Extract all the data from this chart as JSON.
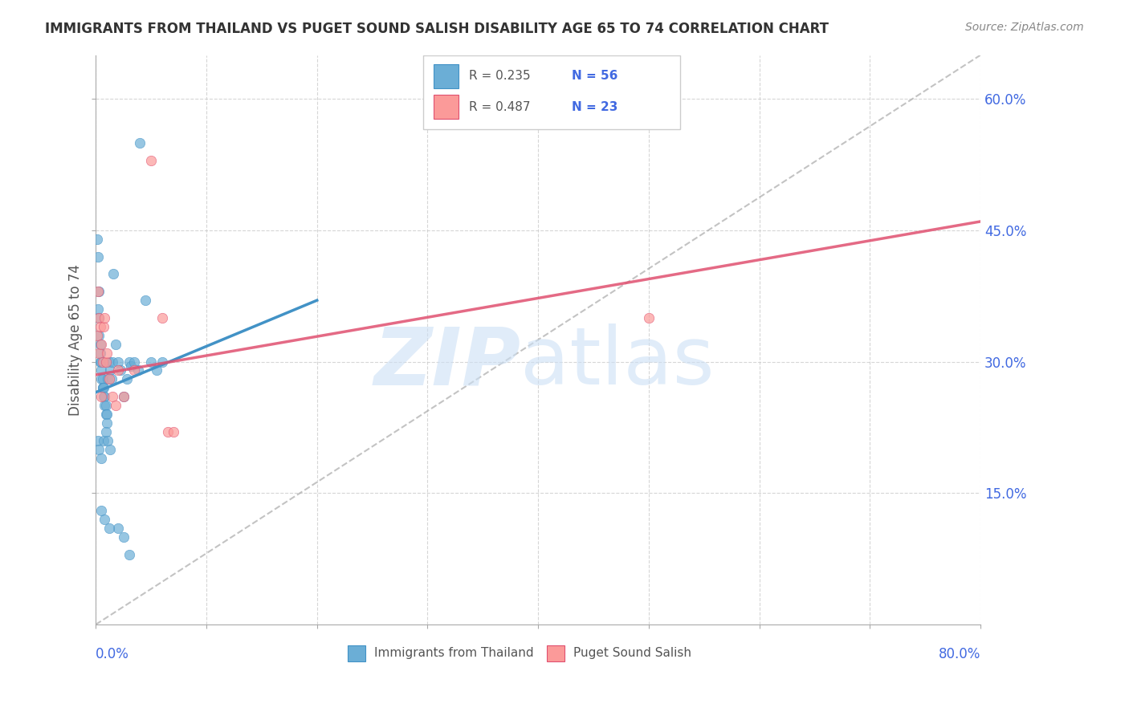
{
  "title": "IMMIGRANTS FROM THAILAND VS PUGET SOUND SALISH DISABILITY AGE 65 TO 74 CORRELATION CHART",
  "source": "Source: ZipAtlas.com",
  "ylabel": "Disability Age 65 to 74",
  "xlim": [
    0.0,
    0.8
  ],
  "ylim": [
    0.0,
    0.65
  ],
  "ytick_labels": [
    "15.0%",
    "30.0%",
    "45.0%",
    "60.0%"
  ],
  "ytick_values": [
    0.15,
    0.3,
    0.45,
    0.6
  ],
  "color_blue": "#6baed6",
  "color_blue_dark": "#4292c6",
  "color_pink": "#fb9a99",
  "color_pink_dark": "#e05070",
  "color_text_blue": "#4169E1",
  "title_color": "#333333",
  "grid_color": "#cccccc",
  "blue_scatter_x": [
    0.001,
    0.002,
    0.002,
    0.003,
    0.003,
    0.003,
    0.004,
    0.004,
    0.004,
    0.005,
    0.005,
    0.005,
    0.006,
    0.006,
    0.006,
    0.007,
    0.007,
    0.008,
    0.008,
    0.009,
    0.009,
    0.01,
    0.01,
    0.011,
    0.012,
    0.013,
    0.014,
    0.015,
    0.016,
    0.018,
    0.02,
    0.022,
    0.025,
    0.028,
    0.03,
    0.032,
    0.035,
    0.038,
    0.04,
    0.045,
    0.05,
    0.055,
    0.06,
    0.002,
    0.003,
    0.005,
    0.007,
    0.009,
    0.011,
    0.013,
    0.02,
    0.025,
    0.03,
    0.005,
    0.008,
    0.012
  ],
  "blue_scatter_y": [
    0.44,
    0.42,
    0.36,
    0.38,
    0.35,
    0.33,
    0.32,
    0.31,
    0.3,
    0.3,
    0.29,
    0.28,
    0.28,
    0.27,
    0.27,
    0.27,
    0.26,
    0.26,
    0.25,
    0.25,
    0.24,
    0.24,
    0.23,
    0.28,
    0.3,
    0.29,
    0.28,
    0.3,
    0.4,
    0.32,
    0.3,
    0.29,
    0.26,
    0.28,
    0.3,
    0.295,
    0.3,
    0.29,
    0.55,
    0.37,
    0.3,
    0.29,
    0.3,
    0.21,
    0.2,
    0.19,
    0.21,
    0.22,
    0.21,
    0.2,
    0.11,
    0.1,
    0.08,
    0.13,
    0.12,
    0.11
  ],
  "pink_scatter_x": [
    0.001,
    0.002,
    0.003,
    0.003,
    0.004,
    0.005,
    0.005,
    0.006,
    0.007,
    0.008,
    0.009,
    0.01,
    0.012,
    0.015,
    0.018,
    0.02,
    0.025,
    0.035,
    0.05,
    0.06,
    0.065,
    0.07,
    0.5
  ],
  "pink_scatter_y": [
    0.33,
    0.38,
    0.35,
    0.31,
    0.34,
    0.32,
    0.26,
    0.3,
    0.34,
    0.35,
    0.3,
    0.31,
    0.28,
    0.26,
    0.25,
    0.29,
    0.26,
    0.29,
    0.53,
    0.35,
    0.22,
    0.22,
    0.35
  ],
  "blue_line_x": [
    0.0,
    0.2
  ],
  "blue_line_y": [
    0.265,
    0.37
  ],
  "pink_line_x": [
    0.0,
    0.8
  ],
  "pink_line_y": [
    0.285,
    0.46
  ],
  "dashed_line_x": [
    0.0,
    0.8
  ],
  "dashed_line_y": [
    0.0,
    0.65
  ]
}
